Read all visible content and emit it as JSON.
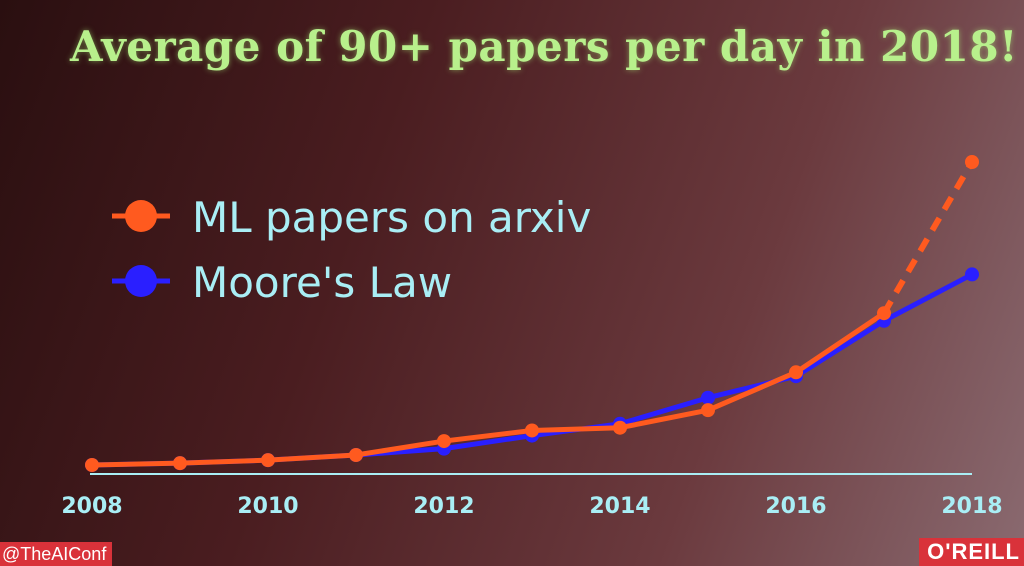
{
  "slide": {
    "title": "Average of 90+ papers per day in 2018!",
    "handle": "@TheAIConf",
    "brand": "O'REILL"
  },
  "colors": {
    "ml": "#ff5a1f",
    "moore": "#2a1fff",
    "axis": "#a9eef5",
    "title": "#b8f08c"
  },
  "chart_data": {
    "type": "line",
    "title": "Average of 90+ papers per day in 2018!",
    "xlabel": "",
    "ylabel": "",
    "x_ticks": [
      "2008",
      "2010",
      "2012",
      "2014",
      "2016",
      "2018"
    ],
    "xlim": [
      2008,
      2018
    ],
    "ylim": [
      0,
      1
    ],
    "grid": false,
    "legend": "top-left",
    "series": [
      {
        "name": "ML papers on arxiv",
        "x": [
          2008,
          2009,
          2010,
          2011,
          2012,
          2013,
          2014,
          2015,
          2016,
          2017
        ],
        "y": [
          0.0,
          0.006,
          0.016,
          0.033,
          0.079,
          0.114,
          0.123,
          0.181,
          0.306,
          0.501
        ],
        "projected": {
          "x": [
            2017,
            2018
          ],
          "y": [
            0.501,
            1.0
          ]
        }
      },
      {
        "name": "Moore's Law",
        "x": [
          2008,
          2009,
          2010,
          2011,
          2012,
          2013,
          2014,
          2015,
          2016,
          2017,
          2018
        ],
        "y": [
          0.0,
          0.006,
          0.016,
          0.033,
          0.054,
          0.097,
          0.136,
          0.222,
          0.293,
          0.476,
          0.629
        ]
      }
    ]
  }
}
